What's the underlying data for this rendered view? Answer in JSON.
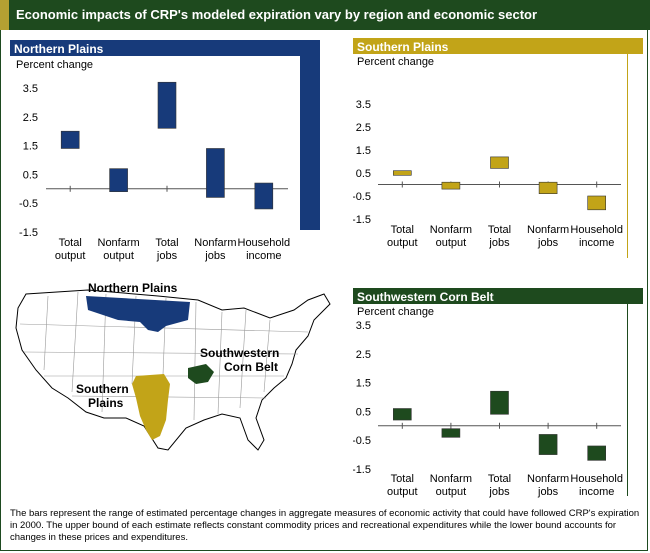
{
  "title": "Economic impacts of CRP's modeled expiration vary by region and economic sector",
  "colors": {
    "header": "#1e4a1e",
    "northern_plains": "#173a7a",
    "southern_plains": "#c2a418",
    "corn_belt": "#1e4a1e",
    "accent": "#b5a032"
  },
  "map": {
    "labels": {
      "northern": "Northern Plains",
      "southwestern_l1": "Southwestern",
      "southwestern_l2": "Corn Belt",
      "southern_l1": "Southern",
      "southern_l2": "Plains"
    }
  },
  "footnote": "The bars represent the range of estimated percentage changes in aggregate measures of economic activity that could have followed CRP's expiration in 2000.  The upper bound of each estimate reflects constant commodity prices and recreational expenditures while the lower bound accounts for changes in these prices and expenditures.",
  "chart_data": [
    {
      "type": "bar",
      "title": "Northern Plains",
      "ylabel": "Percent change",
      "ylim": [
        -1.5,
        4.5
      ],
      "yticks": [
        "3.5",
        "2.5",
        "1.5",
        "0.5",
        "-0.5",
        "-1.5"
      ],
      "categories": [
        [
          "Total",
          "output"
        ],
        [
          "Nonfarm",
          "output"
        ],
        [
          "Total",
          "jobs"
        ],
        [
          "Nonfarm",
          "jobs"
        ],
        [
          "Household",
          "income"
        ]
      ],
      "ranges": [
        [
          1.4,
          2.0
        ],
        [
          -0.1,
          0.7
        ],
        [
          2.1,
          3.7
        ],
        [
          -0.3,
          1.4
        ],
        [
          -0.7,
          0.2
        ]
      ],
      "color": "#173a7a"
    },
    {
      "type": "bar",
      "title": "Southern Plains",
      "ylabel": "Percent change",
      "ylim": [
        -1.5,
        4.5
      ],
      "yticks": [
        "3.5",
        "2.5",
        "1.5",
        "0.5",
        "-0.5",
        "-1.5"
      ],
      "categories": [
        [
          "Total",
          "output"
        ],
        [
          "Nonfarm",
          "output"
        ],
        [
          "Total",
          "jobs"
        ],
        [
          "Nonfarm",
          "jobs"
        ],
        [
          "Household",
          "income"
        ]
      ],
      "ranges": [
        [
          0.4,
          0.6
        ],
        [
          -0.2,
          0.1
        ],
        [
          0.7,
          1.2
        ],
        [
          -0.4,
          0.1
        ],
        [
          -1.1,
          -0.5
        ]
      ],
      "color": "#c2a418"
    },
    {
      "type": "bar",
      "title": "Southwestern Corn Belt",
      "ylabel": "Percent change",
      "ylim": [
        -1.5,
        3.5
      ],
      "yticks": [
        "3.5",
        "2.5",
        "1.5",
        "0.5",
        "-0.5",
        "-1.5"
      ],
      "categories": [
        [
          "Total",
          "output"
        ],
        [
          "Nonfarm",
          "output"
        ],
        [
          "Total",
          "jobs"
        ],
        [
          "Nonfarm",
          "jobs"
        ],
        [
          "Household",
          "income"
        ]
      ],
      "ranges": [
        [
          0.2,
          0.6
        ],
        [
          -0.4,
          -0.1
        ],
        [
          0.4,
          1.2
        ],
        [
          -1.0,
          -0.3
        ],
        [
          -1.2,
          -0.7
        ]
      ],
      "color": "#1e4a1e"
    }
  ]
}
